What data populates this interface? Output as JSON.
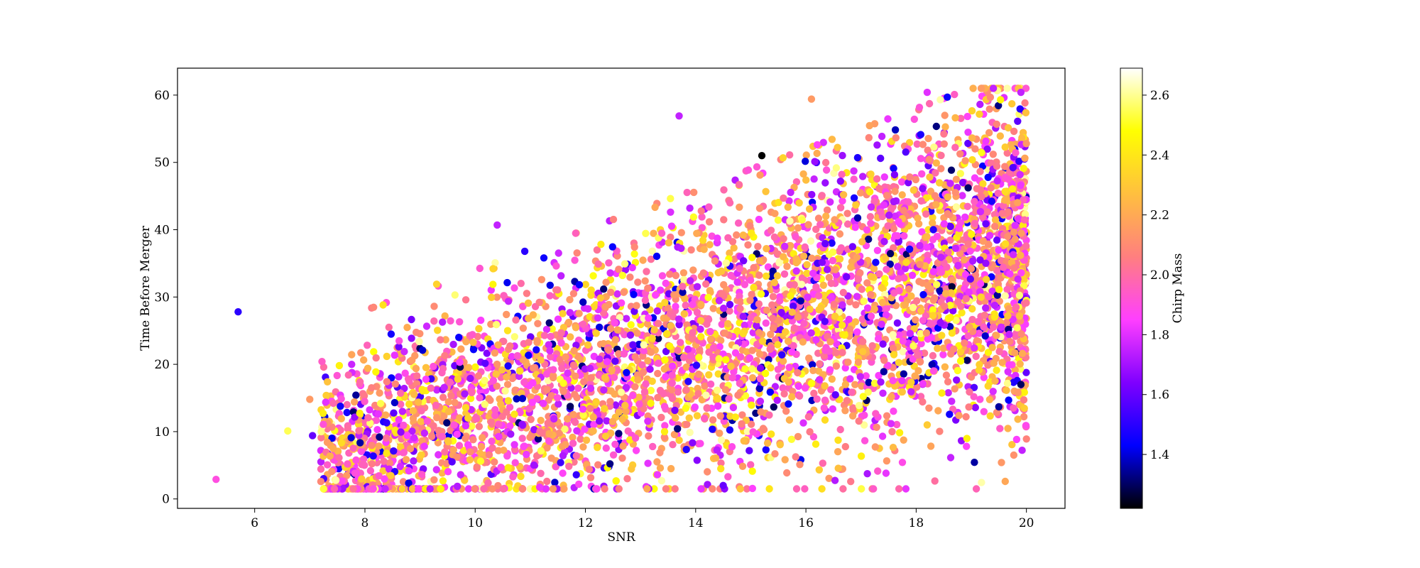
{
  "chart_data": {
    "type": "scatter",
    "title": "",
    "xlabel": "SNR",
    "ylabel": "Time Before Merger",
    "xlim": [
      4.6,
      20.7
    ],
    "ylim": [
      -1.4,
      64
    ],
    "xticks": [
      6,
      8,
      10,
      12,
      14,
      16,
      18,
      20
    ],
    "yticks": [
      0,
      10,
      20,
      30,
      40,
      50,
      60
    ],
    "grid": false,
    "legend": "none",
    "colorbar": {
      "label": "Chirp Mass",
      "colormap": "plasma-like (black-blue-purple-pink-orange-yellow-white)",
      "range": [
        1.22,
        2.69
      ],
      "ticks": [
        1.4,
        1.6,
        1.8,
        2.0,
        2.2,
        2.4,
        2.6
      ],
      "stops": [
        "#000000",
        "#0000ff",
        "#7f00ff",
        "#ff3fff",
        "#ff7f7f",
        "#ffbf3f",
        "#ffff00",
        "#ffffff"
      ]
    },
    "point_count": 5000,
    "snr_range": [
      5.3,
      20.0
    ],
    "time_range": [
      1.5,
      61
    ],
    "trend": "time before merger increases roughly linearly with SNR; lower bound near 2 s, upper envelope rising from ~30 s at SNR 9 to ~60 s at SNR 20",
    "notable_points": [
      {
        "x": 5.3,
        "y": 2.9,
        "chirp_mass": 1.9
      },
      {
        "x": 5.7,
        "y": 27.8,
        "chirp_mass": 1.5
      },
      {
        "x": 6.6,
        "y": 10.1,
        "chirp_mass": 2.55
      },
      {
        "x": 7.0,
        "y": 14.8,
        "chirp_mass": 2.15
      },
      {
        "x": 7.05,
        "y": 9.4,
        "chirp_mass": 1.6
      },
      {
        "x": 10.4,
        "y": 40.7,
        "chirp_mass": 1.75
      },
      {
        "x": 10.9,
        "y": 36.8,
        "chirp_mass": 1.5
      },
      {
        "x": 13.7,
        "y": 56.9,
        "chirp_mass": 1.75
      },
      {
        "x": 15.2,
        "y": 51.0,
        "chirp_mass": 1.22
      },
      {
        "x": 16.1,
        "y": 59.4,
        "chirp_mass": 2.15
      },
      {
        "x": 18.2,
        "y": 60.4,
        "chirp_mass": 1.8
      },
      {
        "x": 19.4,
        "y": 61.0,
        "chirp_mass": 1.75
      },
      {
        "x": 19.9,
        "y": 60.4,
        "chirp_mass": 1.75
      },
      {
        "x": 14.5,
        "y": 2.0,
        "chirp_mass": 1.6
      },
      {
        "x": 19.9,
        "y": 17.0,
        "chirp_mass": 1.3
      },
      {
        "x": 19.5,
        "y": 13.7,
        "chirp_mass": 1.35
      }
    ]
  }
}
